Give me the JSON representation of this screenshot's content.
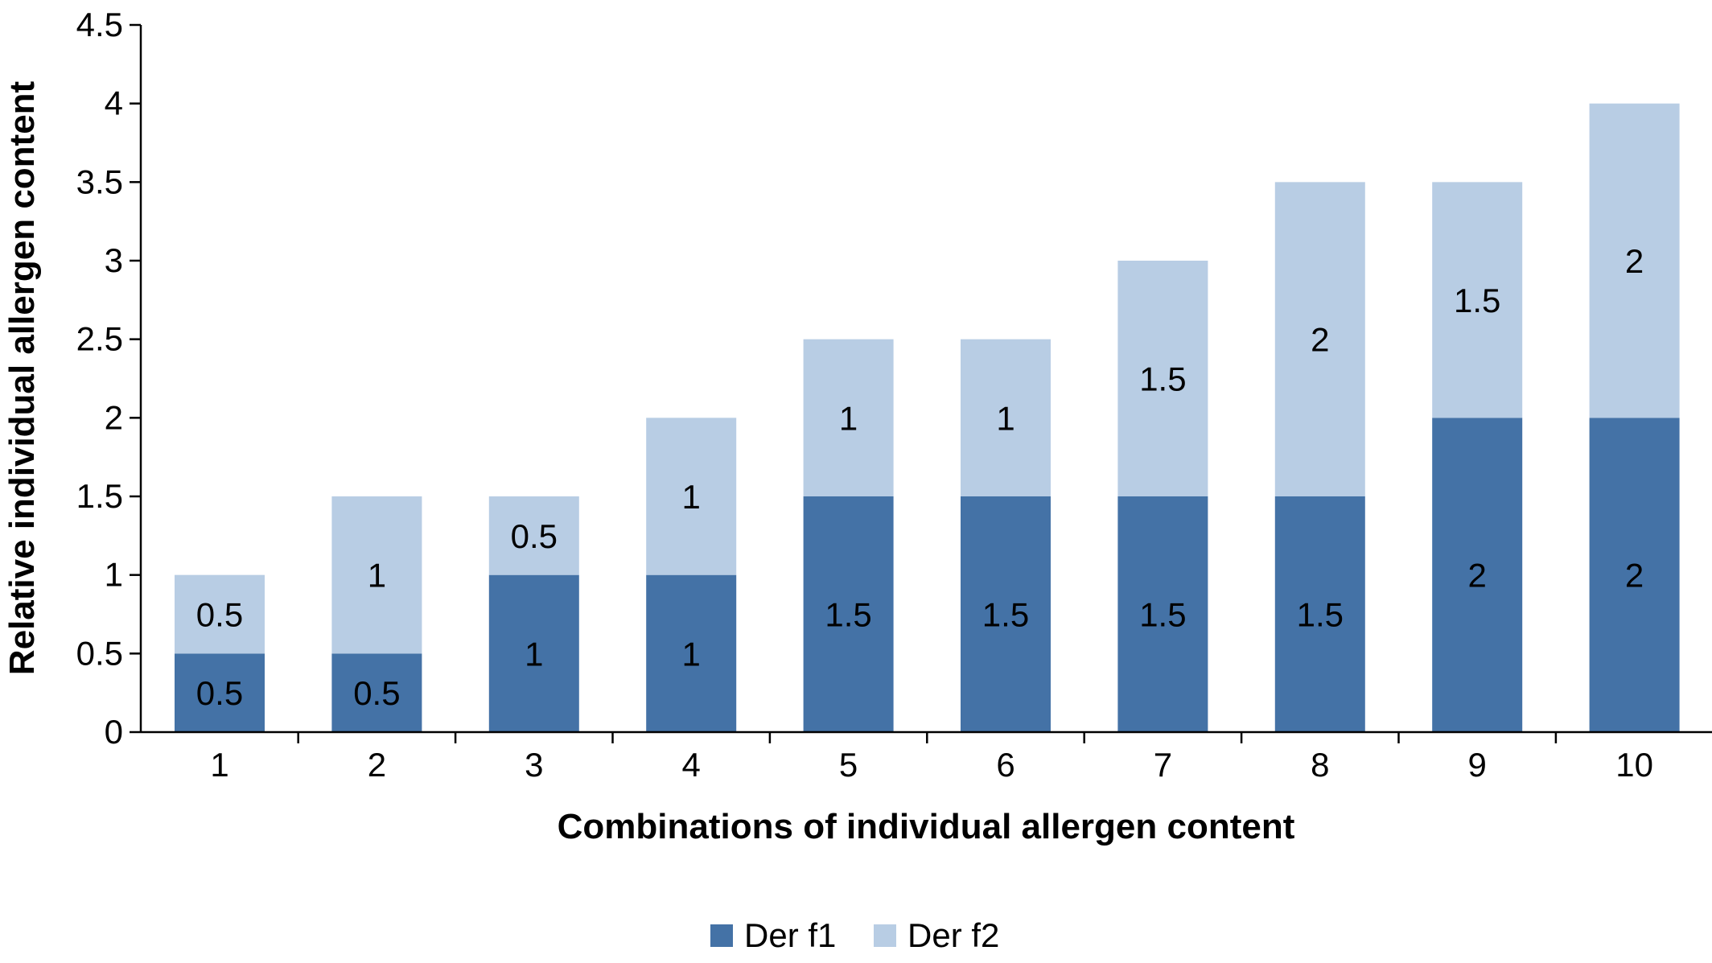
{
  "chart_data": {
    "type": "bar",
    "stacked": true,
    "title": "",
    "xlabel": "Combinations of individual allergen content",
    "ylabel": "Relative individual allergen content",
    "categories": [
      "1",
      "2",
      "3",
      "4",
      "5",
      "6",
      "7",
      "8",
      "9",
      "10"
    ],
    "series": [
      {
        "name": "Der f1",
        "color": "#4472a6",
        "values": [
          0.5,
          0.5,
          1,
          1,
          1.5,
          1.5,
          1.5,
          1.5,
          2,
          2
        ]
      },
      {
        "name": "Der f2",
        "color": "#b8cde4",
        "values": [
          0.5,
          1,
          0.5,
          1,
          1,
          1,
          1.5,
          2,
          1.5,
          2
        ]
      }
    ],
    "data_labels": [
      [
        "0.5",
        "0.5",
        "1",
        "1",
        "1.5",
        "1.5",
        "1.5",
        "1.5",
        "2",
        "2"
      ],
      [
        "0.5",
        "1",
        "0.5",
        "1",
        "1",
        "1",
        "1.5",
        "2",
        "1.5",
        "2"
      ]
    ],
    "ylim": [
      0,
      4.5
    ],
    "yticks": [
      "0",
      "0.5",
      "1",
      "1.5",
      "2",
      "2.5",
      "3",
      "3.5",
      "4",
      "4.5"
    ],
    "grid": false,
    "legend_position": "bottom"
  }
}
